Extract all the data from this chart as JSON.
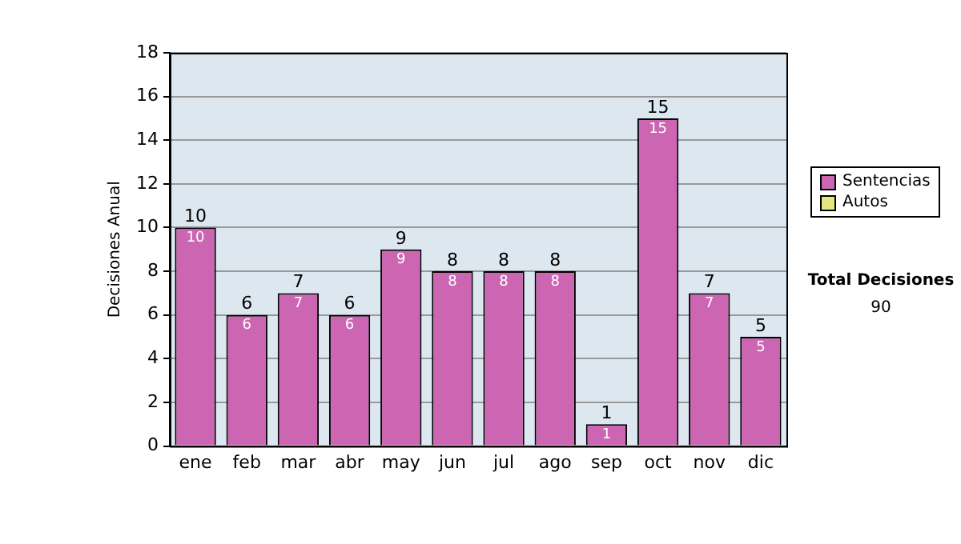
{
  "chart_data": {
    "type": "bar",
    "ylabel": "Decisiones Anual",
    "categories": [
      "ene",
      "feb",
      "mar",
      "abr",
      "may",
      "jun",
      "jul",
      "ago",
      "sep",
      "oct",
      "nov",
      "dic"
    ],
    "series": [
      {
        "name": "Sentencias",
        "color": "#cc66b3",
        "values": [
          10,
          6,
          7,
          6,
          9,
          8,
          8,
          8,
          1,
          15,
          7,
          5
        ],
        "value_labels": [
          "10",
          "6",
          "7",
          "6",
          "9",
          "8",
          "8",
          "8",
          "1",
          "15",
          "7",
          "5"
        ]
      },
      {
        "name": "Autos",
        "color": "#e6e680",
        "values": [
          0,
          0,
          0,
          0,
          0,
          0,
          0,
          0,
          0,
          0,
          0,
          0
        ]
      }
    ],
    "stacked": true,
    "totals": [
      "10",
      "6",
      "7",
      "6",
      "9",
      "8",
      "8",
      "8",
      "1",
      "15",
      "7",
      "5"
    ],
    "ylim": [
      0,
      18
    ],
    "yticks": [
      0,
      2,
      4,
      6,
      8,
      10,
      12,
      14,
      16,
      18
    ],
    "grid": "y",
    "legend": "right",
    "annotations": [
      "Total Decisiones",
      "90"
    ]
  }
}
